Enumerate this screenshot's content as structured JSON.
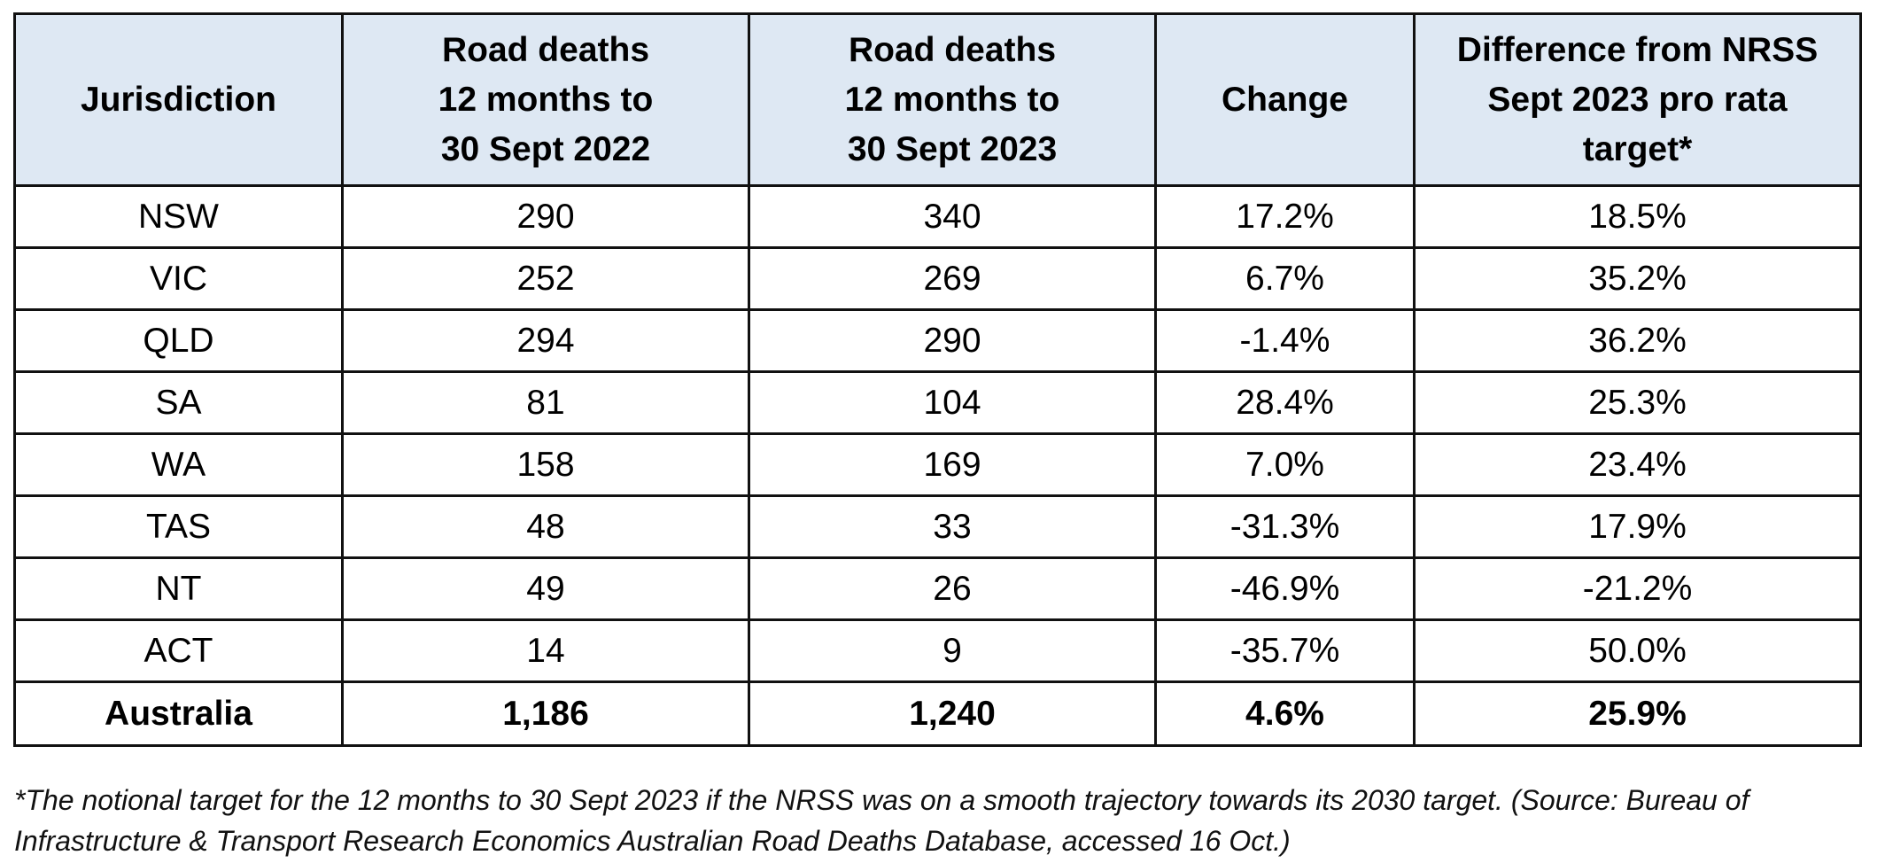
{
  "table": {
    "headers": [
      {
        "lines": [
          "Jurisdiction"
        ]
      },
      {
        "lines": [
          "Road deaths",
          "12 months to",
          "30 Sept 2022"
        ]
      },
      {
        "lines": [
          "Road deaths",
          "12 months to",
          "30 Sept 2023"
        ]
      },
      {
        "lines": [
          "Change"
        ]
      },
      {
        "lines": [
          "Difference from NRSS",
          "Sept 2023 pro rata",
          "target*"
        ]
      }
    ],
    "rows": [
      [
        "NSW",
        "290",
        "340",
        "17.2%",
        "18.5%"
      ],
      [
        "VIC",
        "252",
        "269",
        "6.7%",
        "35.2%"
      ],
      [
        "QLD",
        "294",
        "290",
        "-1.4%",
        "36.2%"
      ],
      [
        "SA",
        "81",
        "104",
        "28.4%",
        "25.3%"
      ],
      [
        "WA",
        "158",
        "169",
        "7.0%",
        "23.4%"
      ],
      [
        "TAS",
        "48",
        "33",
        "-31.3%",
        "17.9%"
      ],
      [
        "NT",
        "49",
        "26",
        "-46.9%",
        "-21.2%"
      ],
      [
        "ACT",
        "14",
        "9",
        "-35.7%",
        "50.0%"
      ]
    ],
    "total": [
      "Australia",
      "1,186",
      "1,240",
      "4.6%",
      "25.9%"
    ]
  },
  "footnote": {
    "line1": "*The notional target for the 12 months to 30 Sept 2023 if the NRSS was on a smooth trajectory towards its 2030 target. (Source: Bureau of",
    "line2": "Infrastructure & Transport Research Economics Australian Road Deaths Database, accessed 16 Oct.)"
  },
  "colors": {
    "header_background": "#dee8f3",
    "border": "#111111"
  }
}
